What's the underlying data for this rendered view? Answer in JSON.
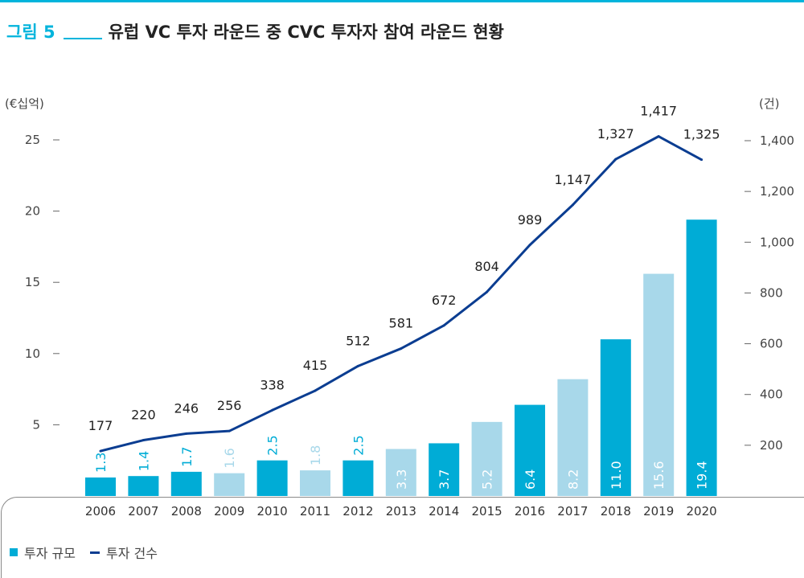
{
  "header": {
    "figure_number": "그림 5",
    "title": "유럽 VC 투자 라운드 중 CVC 투자자 참여 라운드 현황"
  },
  "chart_data": {
    "type": "bar",
    "categories": [
      "2006",
      "2007",
      "2008",
      "2009",
      "2010",
      "2011",
      "2012",
      "2013",
      "2014",
      "2015",
      "2016",
      "2017",
      "2018",
      "2019",
      "2020"
    ],
    "series": [
      {
        "name": "투자 규모",
        "type": "bar",
        "axis": "left",
        "values": [
          1.3,
          1.4,
          1.7,
          1.6,
          2.5,
          1.8,
          2.5,
          3.3,
          3.7,
          5.2,
          6.4,
          8.2,
          11.0,
          15.6,
          19.4
        ],
        "labels": [
          "1.3",
          "1.4",
          "1.7",
          "1.6",
          "2.5",
          "1.8",
          "2.5",
          "3.3",
          "3.7",
          "5.2",
          "6.4",
          "8.2",
          "11.0",
          "15.6",
          "19.4"
        ]
      },
      {
        "name": "투자 건수",
        "type": "line",
        "axis": "right",
        "values": [
          177,
          220,
          246,
          256,
          338,
          415,
          512,
          581,
          672,
          804,
          989,
          1147,
          1327,
          1417,
          1325
        ],
        "labels": [
          "177",
          "220",
          "246",
          "256",
          "338",
          "415",
          "512",
          "581",
          "672",
          "804",
          "989",
          "1,147",
          "1,327",
          "1,417",
          "1,325"
        ]
      }
    ],
    "ylabel": "(€십억)",
    "y2label": "(건)",
    "ylim": [
      0,
      25
    ],
    "y2lim": [
      0,
      1400
    ],
    "yticks": [
      "5",
      "10",
      "15",
      "20",
      "25"
    ],
    "y2ticks": [
      "200",
      "400",
      "600",
      "800",
      "1,000",
      "1,200",
      "1,400"
    ],
    "colors": {
      "bar_dark": "#00acd6",
      "bar_light": "#a8d8ea",
      "line": "#0b3d91",
      "accent": "#00b4dc"
    },
    "legend_position": "bottom-left"
  }
}
